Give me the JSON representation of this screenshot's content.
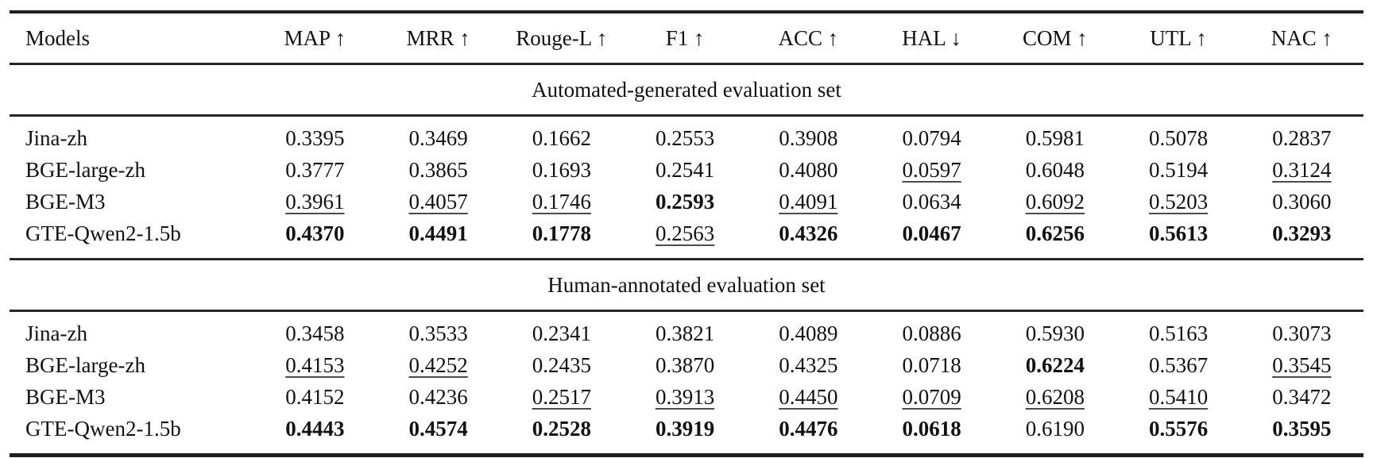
{
  "arrows": {
    "up": "↑",
    "down": "↓"
  },
  "table": {
    "columns": [
      {
        "label": "Models",
        "arrow": ""
      },
      {
        "label": "MAP",
        "arrow": "up"
      },
      {
        "label": "MRR",
        "arrow": "up"
      },
      {
        "label": "Rouge-L",
        "arrow": "up"
      },
      {
        "label": "F1",
        "arrow": "up"
      },
      {
        "label": "ACC",
        "arrow": "up"
      },
      {
        "label": "HAL",
        "arrow": "down"
      },
      {
        "label": "COM",
        "arrow": "up"
      },
      {
        "label": "UTL",
        "arrow": "up"
      },
      {
        "label": "NAC",
        "arrow": "up"
      }
    ],
    "sections": [
      {
        "title": "Automated-generated evaluation set",
        "rows": [
          {
            "model": "Jina-zh",
            "values": [
              {
                "v": "0.3395",
                "e": ""
              },
              {
                "v": "0.3469",
                "e": ""
              },
              {
                "v": "0.1662",
                "e": ""
              },
              {
                "v": "0.2553",
                "e": ""
              },
              {
                "v": "0.3908",
                "e": ""
              },
              {
                "v": "0.0794",
                "e": ""
              },
              {
                "v": "0.5981",
                "e": ""
              },
              {
                "v": "0.5078",
                "e": ""
              },
              {
                "v": "0.2837",
                "e": ""
              }
            ]
          },
          {
            "model": "BGE-large-zh",
            "values": [
              {
                "v": "0.3777",
                "e": ""
              },
              {
                "v": "0.3865",
                "e": ""
              },
              {
                "v": "0.1693",
                "e": ""
              },
              {
                "v": "0.2541",
                "e": ""
              },
              {
                "v": "0.4080",
                "e": ""
              },
              {
                "v": "0.0597",
                "e": "u"
              },
              {
                "v": "0.6048",
                "e": ""
              },
              {
                "v": "0.5194",
                "e": ""
              },
              {
                "v": "0.3124",
                "e": "u"
              }
            ]
          },
          {
            "model": "BGE-M3",
            "values": [
              {
                "v": "0.3961",
                "e": "u"
              },
              {
                "v": "0.4057",
                "e": "u"
              },
              {
                "v": "0.1746",
                "e": "u"
              },
              {
                "v": "0.2593",
                "e": "b"
              },
              {
                "v": "0.4091",
                "e": "u"
              },
              {
                "v": "0.0634",
                "e": ""
              },
              {
                "v": "0.6092",
                "e": "u"
              },
              {
                "v": "0.5203",
                "e": "u"
              },
              {
                "v": "0.3060",
                "e": ""
              }
            ]
          },
          {
            "model": "GTE-Qwen2-1.5b",
            "values": [
              {
                "v": "0.4370",
                "e": "b"
              },
              {
                "v": "0.4491",
                "e": "b"
              },
              {
                "v": "0.1778",
                "e": "b"
              },
              {
                "v": "0.2563",
                "e": "u"
              },
              {
                "v": "0.4326",
                "e": "b"
              },
              {
                "v": "0.0467",
                "e": "b"
              },
              {
                "v": "0.6256",
                "e": "b"
              },
              {
                "v": "0.5613",
                "e": "b"
              },
              {
                "v": "0.3293",
                "e": "b"
              }
            ]
          }
        ]
      },
      {
        "title": "Human-annotated evaluation set",
        "rows": [
          {
            "model": "Jina-zh",
            "values": [
              {
                "v": "0.3458",
                "e": ""
              },
              {
                "v": "0.3533",
                "e": ""
              },
              {
                "v": "0.2341",
                "e": ""
              },
              {
                "v": "0.3821",
                "e": ""
              },
              {
                "v": "0.4089",
                "e": ""
              },
              {
                "v": "0.0886",
                "e": ""
              },
              {
                "v": "0.5930",
                "e": ""
              },
              {
                "v": "0.5163",
                "e": ""
              },
              {
                "v": "0.3073",
                "e": ""
              }
            ]
          },
          {
            "model": "BGE-large-zh",
            "values": [
              {
                "v": "0.4153",
                "e": "u"
              },
              {
                "v": "0.4252",
                "e": "u"
              },
              {
                "v": "0.2435",
                "e": ""
              },
              {
                "v": "0.3870",
                "e": ""
              },
              {
                "v": "0.4325",
                "e": ""
              },
              {
                "v": "0.0718",
                "e": ""
              },
              {
                "v": "0.6224",
                "e": "b"
              },
              {
                "v": "0.5367",
                "e": ""
              },
              {
                "v": "0.3545",
                "e": "u"
              }
            ]
          },
          {
            "model": "BGE-M3",
            "values": [
              {
                "v": "0.4152",
                "e": ""
              },
              {
                "v": "0.4236",
                "e": ""
              },
              {
                "v": "0.2517",
                "e": "u"
              },
              {
                "v": "0.3913",
                "e": "u"
              },
              {
                "v": "0.4450",
                "e": "u"
              },
              {
                "v": "0.0709",
                "e": "u"
              },
              {
                "v": "0.6208",
                "e": "u"
              },
              {
                "v": "0.5410",
                "e": "u"
              },
              {
                "v": "0.3472",
                "e": ""
              }
            ]
          },
          {
            "model": "GTE-Qwen2-1.5b",
            "values": [
              {
                "v": "0.4443",
                "e": "b"
              },
              {
                "v": "0.4574",
                "e": "b"
              },
              {
                "v": "0.2528",
                "e": "b"
              },
              {
                "v": "0.3919",
                "e": "b"
              },
              {
                "v": "0.4476",
                "e": "b"
              },
              {
                "v": "0.0618",
                "e": "b"
              },
              {
                "v": "0.6190",
                "e": ""
              },
              {
                "v": "0.5576",
                "e": "b"
              },
              {
                "v": "0.3595",
                "e": "b"
              }
            ]
          }
        ]
      }
    ]
  }
}
